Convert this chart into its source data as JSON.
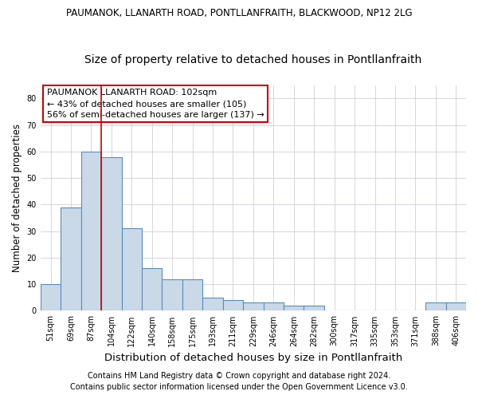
{
  "title1": "PAUMANOK, LLANARTH ROAD, PONTLLANFRAITH, BLACKWOOD, NP12 2LG",
  "title2": "Size of property relative to detached houses in Pontllanfraith",
  "xlabel": "Distribution of detached houses by size in Pontllanfraith",
  "ylabel": "Number of detached properties",
  "categories": [
    "51sqm",
    "69sqm",
    "87sqm",
    "104sqm",
    "122sqm",
    "140sqm",
    "158sqm",
    "175sqm",
    "193sqm",
    "211sqm",
    "229sqm",
    "246sqm",
    "264sqm",
    "282sqm",
    "300sqm",
    "317sqm",
    "335sqm",
    "353sqm",
    "371sqm",
    "388sqm",
    "406sqm"
  ],
  "values": [
    10,
    39,
    60,
    58,
    31,
    16,
    12,
    12,
    5,
    4,
    3,
    3,
    2,
    2,
    0,
    0,
    0,
    0,
    0,
    3,
    3
  ],
  "bar_color": "#c9d9e8",
  "bar_edge_color": "#5b8db8",
  "bar_linewidth": 0.8,
  "vline_x": 2.5,
  "vline_color": "#cc0000",
  "vline_linewidth": 1.2,
  "annotation_text": "PAUMANOK LLANARTH ROAD: 102sqm\n← 43% of detached houses are smaller (105)\n56% of semi-detached houses are larger (137) →",
  "annotation_box_color": "#ffffff",
  "annotation_box_edge_color": "#cc0000",
  "ylim": [
    0,
    85
  ],
  "yticks": [
    0,
    10,
    20,
    30,
    40,
    50,
    60,
    70,
    80
  ],
  "grid_color": "#d0d0d8",
  "footer1": "Contains HM Land Registry data © Crown copyright and database right 2024.",
  "footer2": "Contains public sector information licensed under the Open Government Licence v3.0.",
  "background_color": "#ffffff",
  "title1_fontsize": 8.5,
  "title2_fontsize": 10,
  "tick_fontsize": 7,
  "xlabel_fontsize": 9.5,
  "ylabel_fontsize": 8.5,
  "footer_fontsize": 7,
  "annotation_fontsize": 8
}
